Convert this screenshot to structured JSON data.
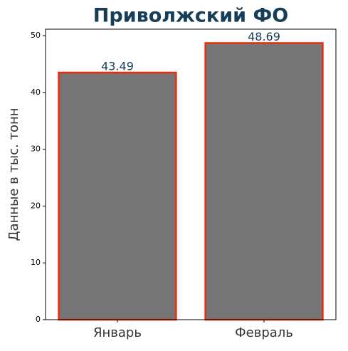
{
  "chart_data": {
    "type": "bar",
    "title": "Приволжский ФО",
    "y_label": "Данные в тыс. тонн",
    "categories": [
      "Январь",
      "Февраль"
    ],
    "values": [
      43.49,
      48.69
    ],
    "color": "#757575",
    "edge_color": "#f02a0a",
    "ylim": [
      0,
      51.13
    ],
    "yticks": [
      0,
      10,
      20,
      30,
      40,
      50
    ],
    "grid": false
  }
}
